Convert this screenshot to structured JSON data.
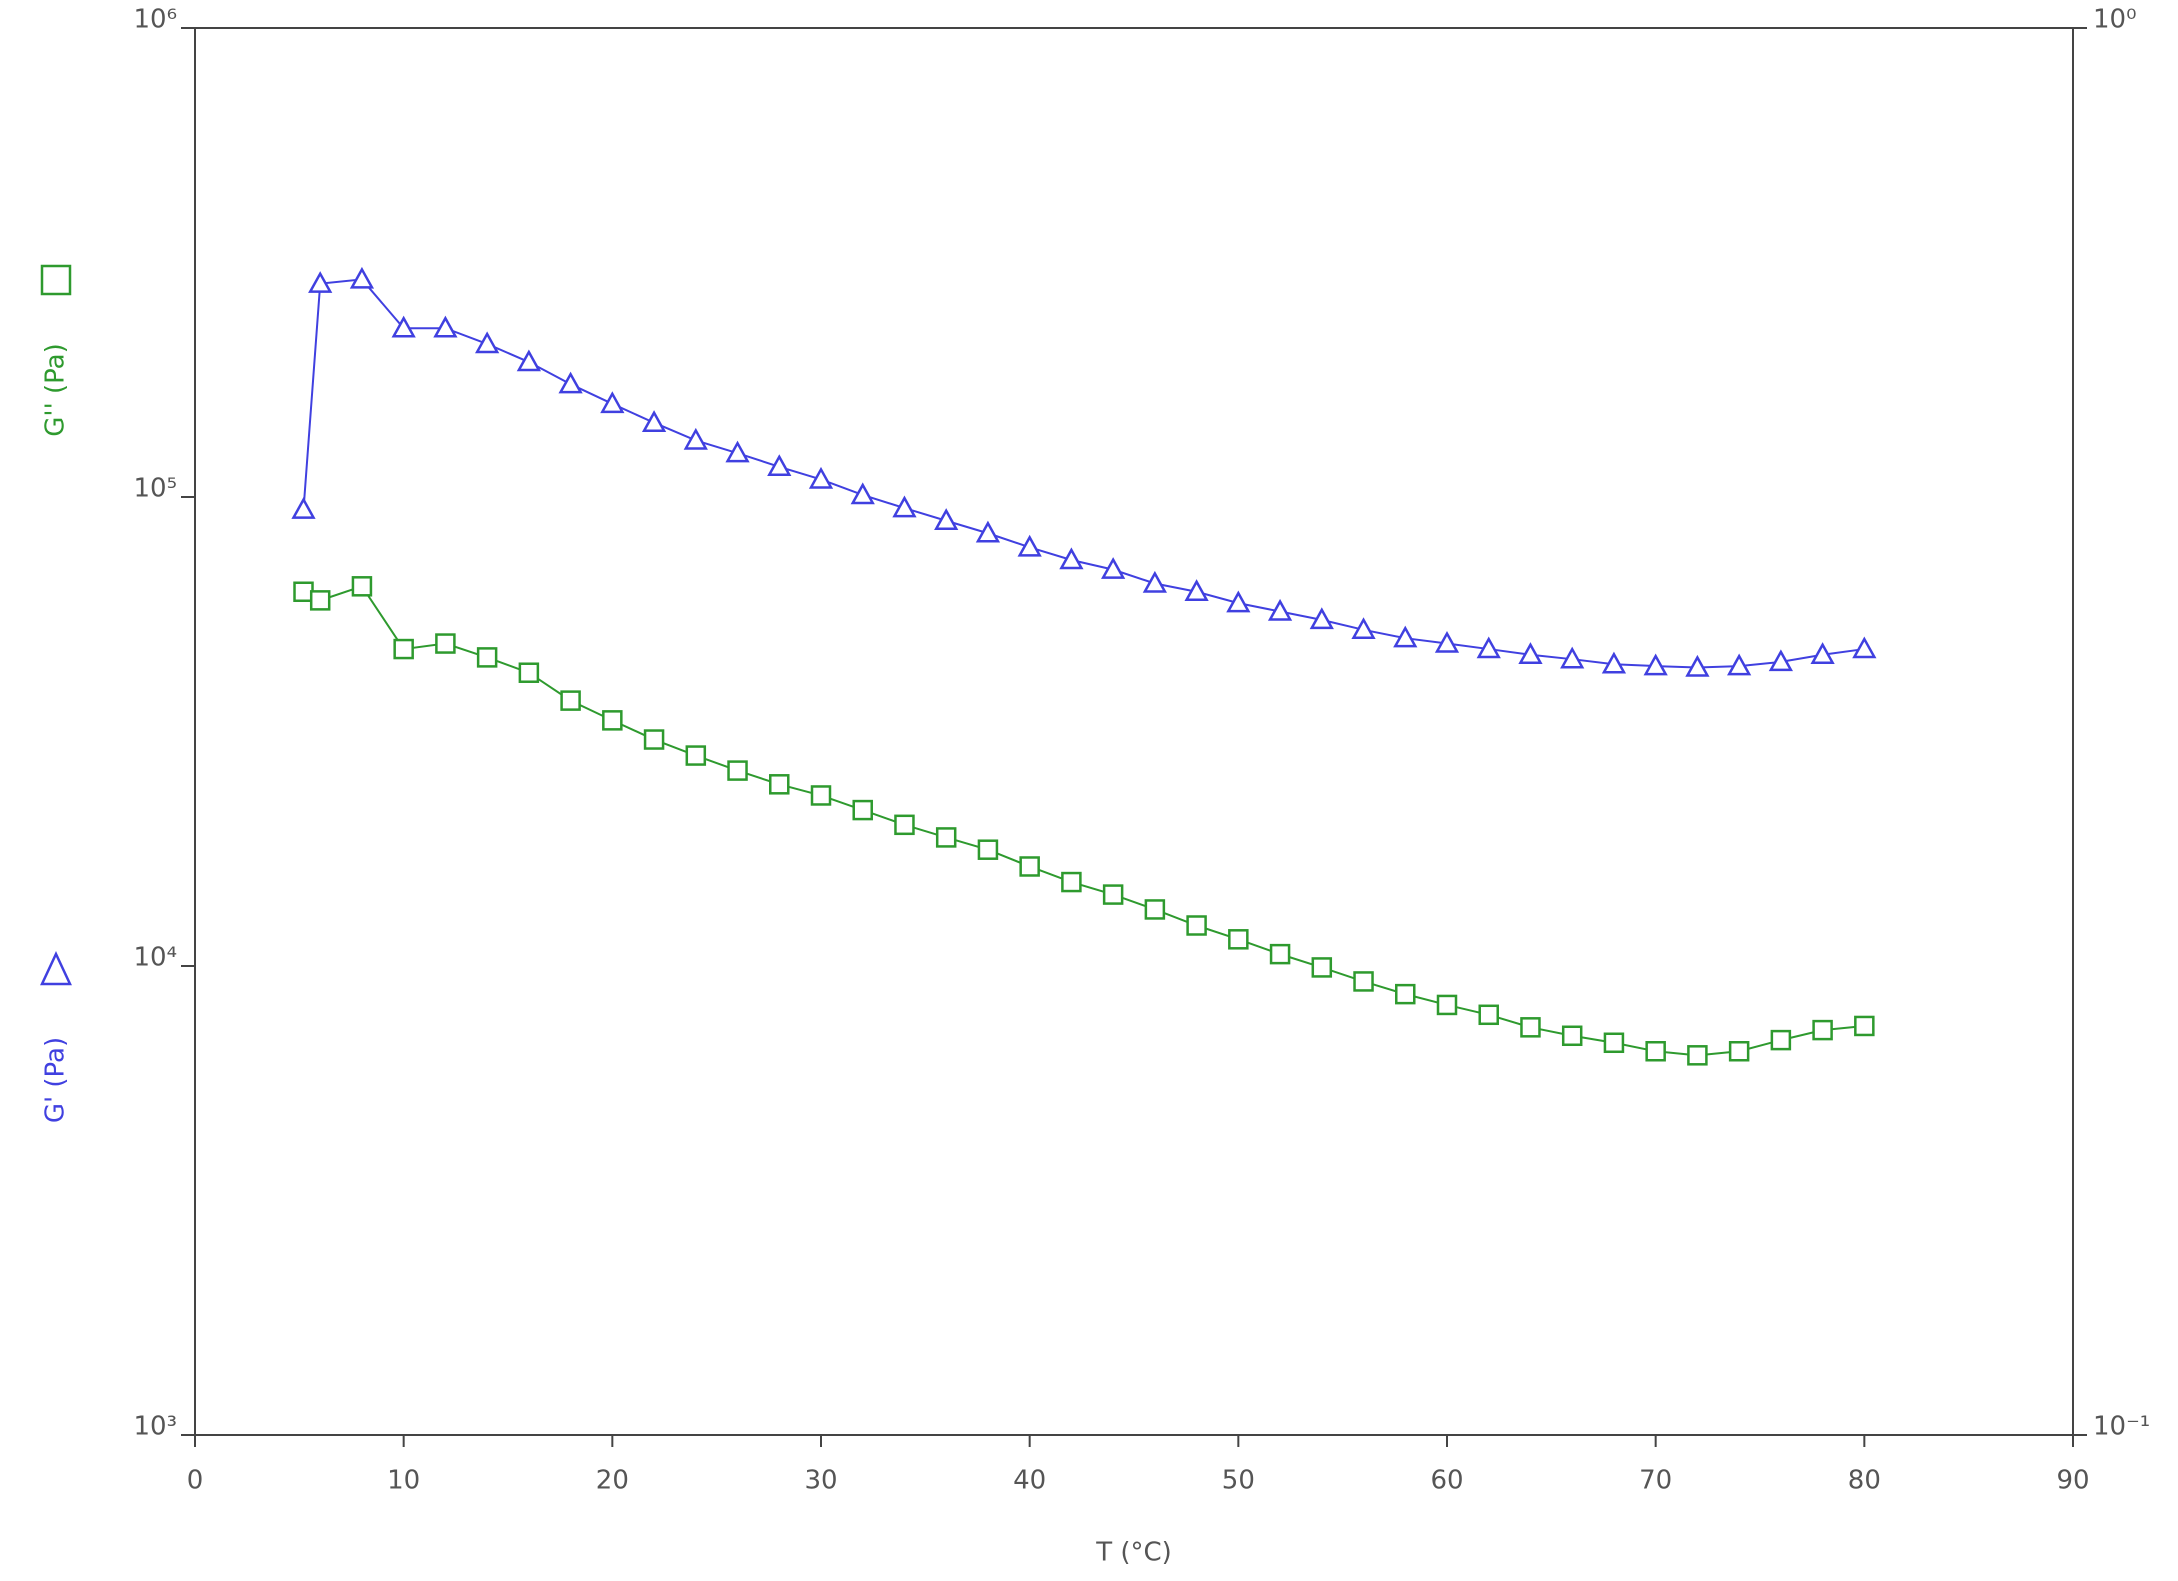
{
  "chart_data": {
    "type": "line",
    "xlabel": "T (°C)",
    "x": [
      5.2,
      6,
      8,
      10,
      12,
      14,
      16,
      18,
      20,
      22,
      24,
      26,
      28,
      30,
      32,
      34,
      36,
      38,
      40,
      42,
      44,
      46,
      48,
      50,
      52,
      54,
      56,
      58,
      60,
      62,
      64,
      66,
      68,
      70,
      72,
      74,
      76,
      78,
      80
    ],
    "series": [
      {
        "name": "G' (Pa)",
        "color": "#4040e0",
        "marker": "triangle",
        "values": [
          94000,
          285000,
          291000,
          229000,
          229000,
          212000,
          194000,
          174000,
          158000,
          144000,
          132000,
          124000,
          116000,
          109000,
          101000,
          94700,
          89000,
          83700,
          78100,
          73400,
          70000,
          65400,
          62800,
          59400,
          57000,
          54700,
          52100,
          50000,
          48700,
          47400,
          46100,
          45100,
          44000,
          43600,
          43300,
          43600,
          44500,
          46100,
          47400
        ]
      },
      {
        "name": "G'' (Pa)",
        "color": "#2e9a2e",
        "marker": "square",
        "values": [
          62800,
          60200,
          64500,
          47400,
          48700,
          45500,
          42200,
          36800,
          33400,
          30400,
          28100,
          26100,
          24400,
          23100,
          21500,
          20000,
          18800,
          17700,
          16300,
          15100,
          14200,
          13200,
          12200,
          11400,
          10600,
          9930,
          9270,
          8710,
          8260,
          7870,
          7400,
          7100,
          6860,
          6580,
          6450,
          6580,
          6950,
          7300,
          7450
        ]
      }
    ],
    "xlim": [
      0,
      90
    ],
    "xticks": [
      0,
      10,
      20,
      30,
      40,
      50,
      60,
      70,
      80,
      90
    ],
    "ylim": [
      1000,
      1000000
    ],
    "log_scale": true,
    "yticks": [
      {
        "value": 1000,
        "label": "10³"
      },
      {
        "value": 10000,
        "label": "10⁴"
      },
      {
        "value": 100000,
        "label": "10⁵"
      },
      {
        "value": 1000000,
        "label": "10⁶"
      }
    ],
    "y2lim": [
      0.1,
      1
    ],
    "y2ticks": [
      {
        "value": 0.1,
        "label": "10⁻¹"
      },
      {
        "value": 1,
        "label": "10⁰"
      }
    ]
  }
}
